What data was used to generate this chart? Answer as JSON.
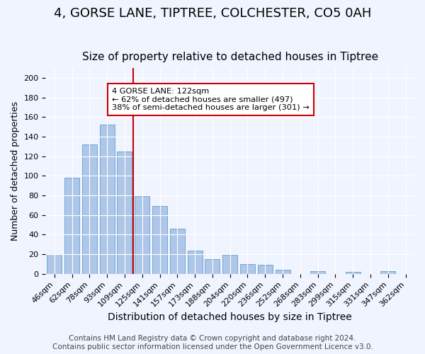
{
  "title": "4, GORSE LANE, TIPTREE, COLCHESTER, CO5 0AH",
  "subtitle": "Size of property relative to detached houses in Tiptree",
  "xlabel": "Distribution of detached houses by size in Tiptree",
  "ylabel": "Number of detached properties",
  "categories": [
    "46sqm",
    "62sqm",
    "78sqm",
    "93sqm",
    "109sqm",
    "125sqm",
    "141sqm",
    "157sqm",
    "173sqm",
    "188sqm",
    "204sqm",
    "220sqm",
    "236sqm",
    "252sqm",
    "268sqm",
    "283sqm",
    "299sqm",
    "315sqm",
    "331sqm",
    "347sqm",
    "362sqm"
  ],
  "values": [
    20,
    98,
    132,
    152,
    125,
    79,
    69,
    46,
    24,
    15,
    19,
    10,
    9,
    4,
    0,
    3,
    0,
    2,
    0,
    3,
    0
  ],
  "bar_color": "#aec6e8",
  "bar_edge_color": "#6fa8d0",
  "vline_x_index": 5,
  "vline_color": "#cc0000",
  "annotation_box_text": "4 GORSE LANE: 122sqm\n← 62% of detached houses are smaller (497)\n38% of semi-detached houses are larger (301) →",
  "annotation_box_edge_color": "#cc0000",
  "annotation_box_facecolor": "#ffffff",
  "ylim": [
    0,
    210
  ],
  "background_color": "#f0f4ff",
  "footer_line1": "Contains HM Land Registry data © Crown copyright and database right 2024.",
  "footer_line2": "Contains public sector information licensed under the Open Government Licence v3.0.",
  "title_fontsize": 13,
  "subtitle_fontsize": 11,
  "xlabel_fontsize": 10,
  "ylabel_fontsize": 9,
  "tick_fontsize": 8,
  "footer_fontsize": 7.5
}
